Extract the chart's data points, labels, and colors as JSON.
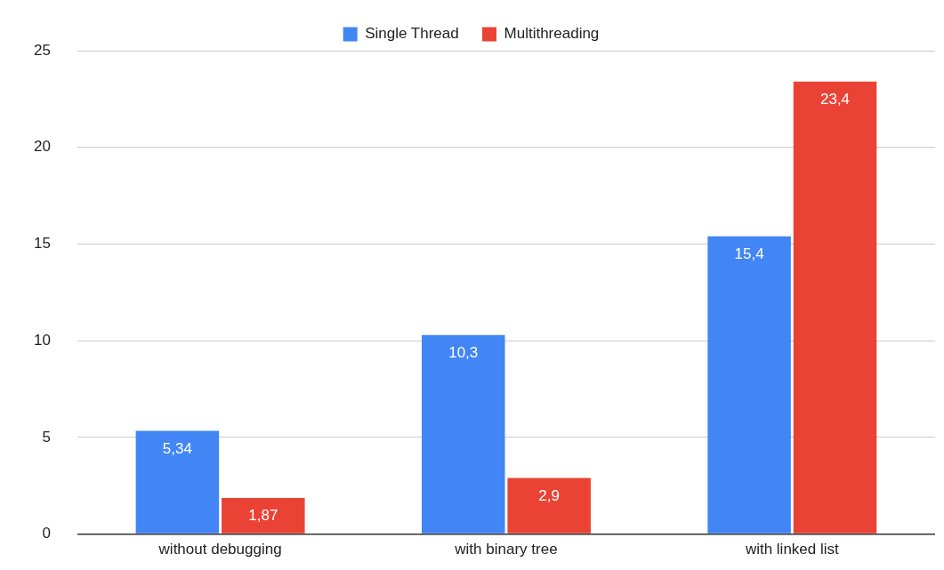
{
  "chart_data": {
    "type": "bar",
    "categories": [
      "without debugging",
      "with binary tree",
      "with linked list"
    ],
    "series": [
      {
        "name": "Single Thread",
        "color": "#4285f4",
        "values": [
          5.34,
          10.3,
          15.4
        ],
        "value_labels": [
          "5,34",
          "10,3",
          "15,4"
        ]
      },
      {
        "name": "Multithreading",
        "color": "#ea4335",
        "values": [
          1.87,
          2.9,
          23.4
        ],
        "value_labels": [
          "1,87",
          "2,9",
          "23,4"
        ]
      }
    ],
    "ylim": [
      0,
      25
    ],
    "yticks": [
      0,
      5,
      10,
      15,
      20,
      25
    ],
    "grid": "y",
    "legend": "top"
  }
}
